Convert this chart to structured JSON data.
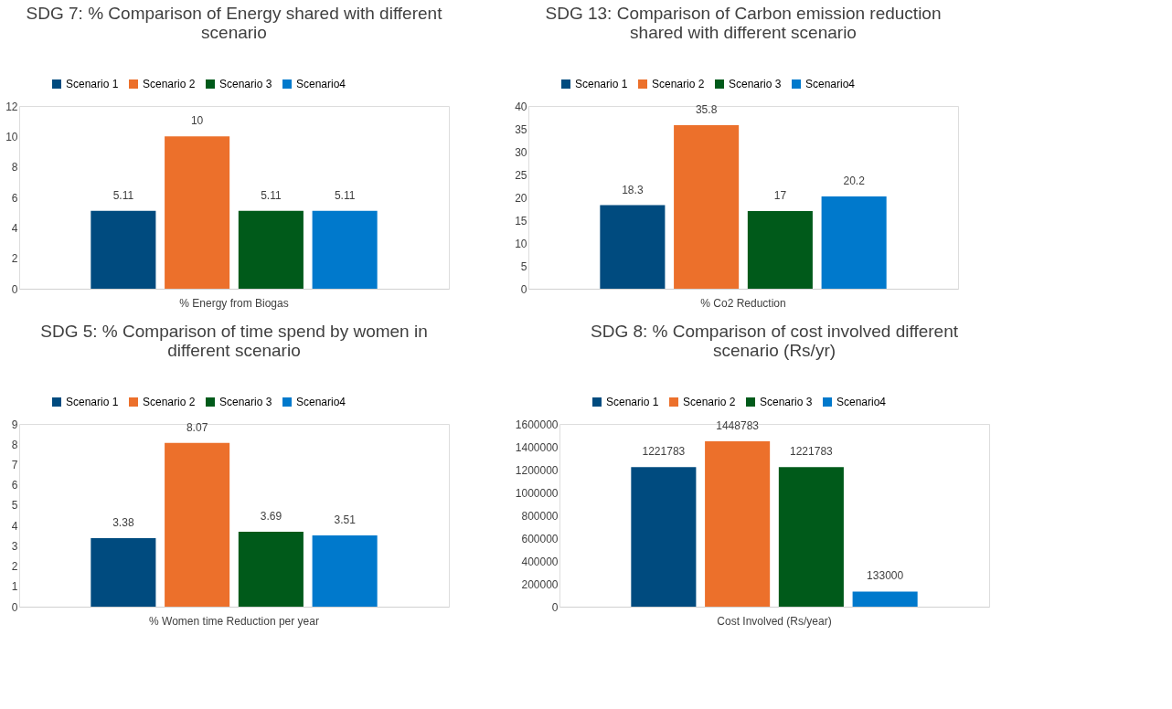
{
  "chart_data": [
    {
      "type": "bar",
      "title": "SDG 7: % Comparison of Energy shared with different scenario",
      "categories": [
        "% Energy from Biogas"
      ],
      "series": [
        {
          "name": "Scenario 1",
          "color": "#004b7f",
          "values": [
            5.11
          ]
        },
        {
          "name": "Scenario 2",
          "color": "#ec702b",
          "values": [
            10
          ]
        },
        {
          "name": "Scenario 3",
          "color": "#005a1a",
          "values": [
            5.11
          ]
        },
        {
          "name": "Scenario4",
          "color": "#0079cc",
          "values": [
            5.11
          ]
        }
      ],
      "ylim": [
        0,
        12
      ],
      "yticks": [
        0,
        2,
        4,
        6,
        8,
        10,
        12
      ],
      "data_labels": true,
      "legend": "top",
      "grid": false
    },
    {
      "type": "bar",
      "title": "SDG 13: Comparison of Carbon emission reduction shared with different scenario",
      "categories": [
        "% Co2 Reduction"
      ],
      "series": [
        {
          "name": "Scenario 1",
          "color": "#004b7f",
          "values": [
            18.3
          ]
        },
        {
          "name": "Scenario 2",
          "color": "#ec702b",
          "values": [
            35.8
          ]
        },
        {
          "name": "Scenario 3",
          "color": "#005a1a",
          "values": [
            17
          ]
        },
        {
          "name": "Scenario4",
          "color": "#0079cc",
          "values": [
            20.2
          ]
        }
      ],
      "ylim": [
        0,
        40
      ],
      "yticks": [
        0,
        5,
        10,
        15,
        20,
        25,
        30,
        35,
        40
      ],
      "data_labels": true,
      "legend": "top",
      "grid": false
    },
    {
      "type": "bar",
      "title": "SDG 5: % Comparison of time spend by women in different scenario",
      "categories": [
        "% Women time Reduction per year"
      ],
      "series": [
        {
          "name": "Scenario 1",
          "color": "#004b7f",
          "values": [
            3.38
          ]
        },
        {
          "name": "Scenario 2",
          "color": "#ec702b",
          "values": [
            8.07
          ]
        },
        {
          "name": "Scenario 3",
          "color": "#005a1a",
          "values": [
            3.69
          ]
        },
        {
          "name": "Scenario4",
          "color": "#0079cc",
          "values": [
            3.51
          ]
        }
      ],
      "ylim": [
        0,
        9
      ],
      "yticks": [
        0,
        1,
        2,
        3,
        4,
        5,
        6,
        7,
        8,
        9
      ],
      "data_labels": true,
      "legend": "top",
      "grid": false
    },
    {
      "type": "bar",
      "title": "SDG 8: % Comparison of cost involved different scenario (Rs/yr)",
      "categories": [
        "Cost Involved (Rs/year)"
      ],
      "series": [
        {
          "name": "Scenario 1",
          "color": "#004b7f",
          "values": [
            1221783
          ]
        },
        {
          "name": "Scenario 2",
          "color": "#ec702b",
          "values": [
            1448783
          ]
        },
        {
          "name": "Scenario 3",
          "color": "#005a1a",
          "values": [
            1221783
          ]
        },
        {
          "name": "Scenario4",
          "color": "#0079cc",
          "values": [
            133000
          ]
        }
      ],
      "ylim": [
        0,
        1600000
      ],
      "yticks": [
        0,
        200000,
        400000,
        600000,
        800000,
        1000000,
        1200000,
        1400000,
        1600000
      ],
      "data_labels": true,
      "legend": "top",
      "grid": false
    }
  ]
}
